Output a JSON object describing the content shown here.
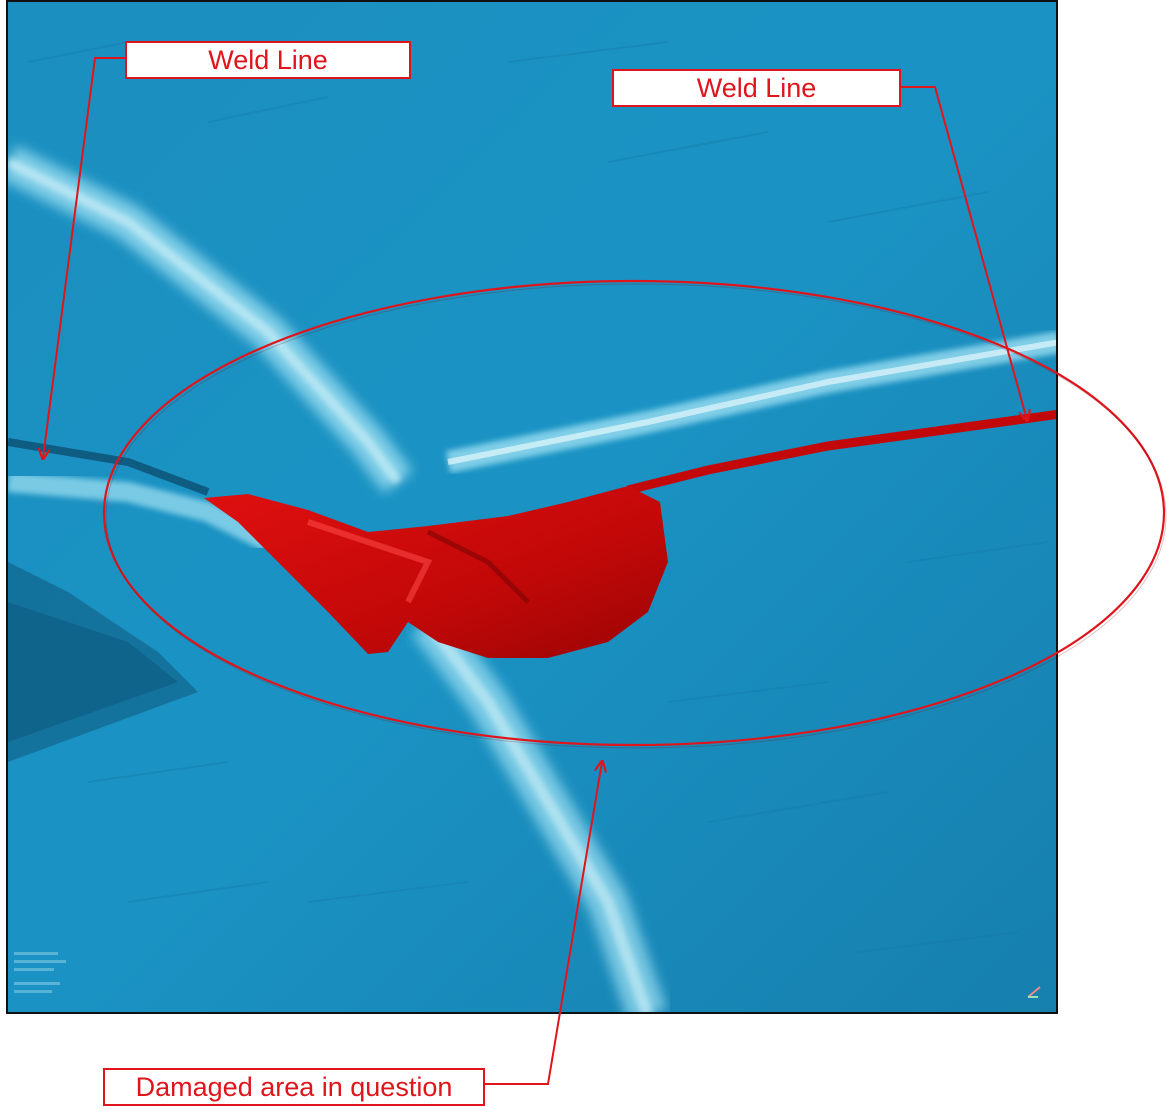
{
  "callouts": {
    "weld_line_left": "Weld Line",
    "weld_line_right": "Weld Line",
    "damaged_area": "Damaged area in question"
  },
  "colors": {
    "surface": "#1a8fc0",
    "weld_highlight": "#9fe0f2",
    "damage": "#c90808",
    "annotation": "#e0151b"
  }
}
